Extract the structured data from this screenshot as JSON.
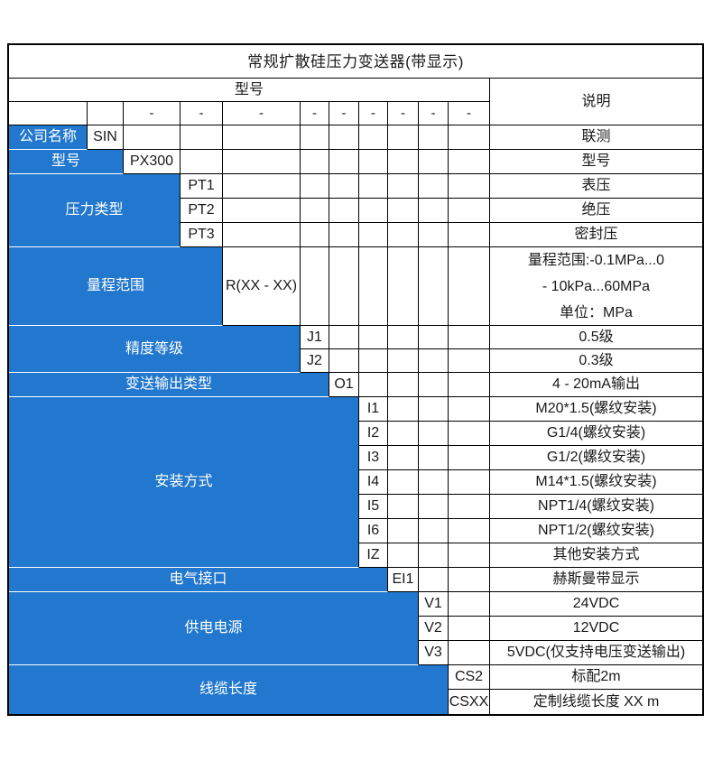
{
  "colors": {
    "accent_blue": "#2277CE",
    "border": "#000000",
    "text_dark": "#1a1a1a",
    "text_on_blue": "#ffffff"
  },
  "table": {
    "title": "常规扩散硅压力变送器(带显示)",
    "model_header": "型号",
    "desc_header": "说明",
    "dash": "-",
    "sections": [
      {
        "label": "公司名称",
        "options": [
          {
            "code": "SIN",
            "desc": "联测"
          }
        ]
      },
      {
        "label": "型号",
        "options": [
          {
            "code": "PX300",
            "desc": "型号"
          }
        ]
      },
      {
        "label": "压力类型",
        "options": [
          {
            "code": "PT1",
            "desc": "表压"
          },
          {
            "code": "PT2",
            "desc": "绝压"
          },
          {
            "code": "PT3",
            "desc": "密封压"
          }
        ]
      },
      {
        "label": "量程范围",
        "options": [
          {
            "code": "R(XX - XX)",
            "desc_lines": [
              "量程范围:-0.1MPa...0",
              "- 10kPa...60MPa",
              "单位：MPa"
            ]
          }
        ]
      },
      {
        "label": "精度等级",
        "options": [
          {
            "code": "J1",
            "desc": "0.5级"
          },
          {
            "code": "J2",
            "desc": "0.3级"
          }
        ]
      },
      {
        "label": "变送输出类型",
        "options": [
          {
            "code": "O1",
            "desc": "4 - 20mA输出"
          }
        ]
      },
      {
        "label": "安装方式",
        "options": [
          {
            "code": "I1",
            "desc": "M20*1.5(螺纹安装)"
          },
          {
            "code": "I2",
            "desc": "G1/4(螺纹安装)"
          },
          {
            "code": "I3",
            "desc": "G1/2(螺纹安装)"
          },
          {
            "code": "I4",
            "desc": "M14*1.5(螺纹安装)"
          },
          {
            "code": "I5",
            "desc": "NPT1/4(螺纹安装)"
          },
          {
            "code": "I6",
            "desc": "NPT1/2(螺纹安装)"
          },
          {
            "code": "IZ",
            "desc": "其他安装方式"
          }
        ]
      },
      {
        "label": "电气接口",
        "options": [
          {
            "code": "EI1",
            "desc": "赫斯曼带显示"
          }
        ]
      },
      {
        "label": "供电电源",
        "options": [
          {
            "code": "V1",
            "desc": "24VDC"
          },
          {
            "code": "V2",
            "desc": "12VDC"
          },
          {
            "code": "V3",
            "desc": "5VDC(仅支持电压变送输出)"
          }
        ]
      },
      {
        "label": "线缆长度",
        "options": [
          {
            "code": "CS2",
            "desc": "标配2m"
          },
          {
            "code": "CSXX",
            "desc": "定制线缆长度 XX m"
          }
        ]
      }
    ]
  }
}
